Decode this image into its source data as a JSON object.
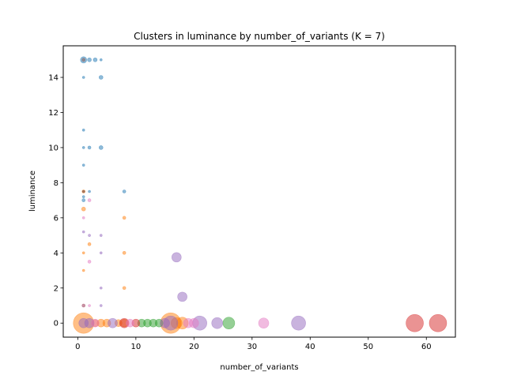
{
  "chart_data": {
    "type": "scatter",
    "title": "Clusters in luminance by number_of_variants (K = 7)",
    "xlabel": "number_of_variants",
    "ylabel": "luminance",
    "xlim": [
      -2.5,
      65
    ],
    "ylim": [
      -0.8,
      15.8
    ],
    "xticks": [
      0,
      10,
      20,
      30,
      40,
      50,
      60
    ],
    "yticks": [
      0,
      2,
      4,
      6,
      8,
      10,
      12,
      14
    ],
    "grid": false,
    "legend": "none",
    "alpha": 0.5,
    "series": [
      {
        "color": "#1f77b4",
        "points": [
          {
            "x": 1,
            "y": 15,
            "s": 4
          },
          {
            "x": 2,
            "y": 15,
            "s": 2.5
          },
          {
            "x": 3,
            "y": 15,
            "s": 2.5
          },
          {
            "x": 4,
            "y": 15,
            "s": 1.5
          },
          {
            "x": 1,
            "y": 14,
            "s": 1.5
          },
          {
            "x": 4,
            "y": 14,
            "s": 2.5
          },
          {
            "x": 1,
            "y": 11,
            "s": 1.5
          },
          {
            "x": 1,
            "y": 10,
            "s": 1.5
          },
          {
            "x": 2,
            "y": 10,
            "s": 2
          },
          {
            "x": 4,
            "y": 10,
            "s": 2.5
          },
          {
            "x": 1,
            "y": 9,
            "s": 1.5
          },
          {
            "x": 1,
            "y": 7.5,
            "s": 1.5
          },
          {
            "x": 2,
            "y": 7.5,
            "s": 1.5
          },
          {
            "x": 8,
            "y": 7.5,
            "s": 2
          },
          {
            "x": 1,
            "y": 7.2,
            "s": 1.5
          },
          {
            "x": 1,
            "y": 7,
            "s": 2
          }
        ]
      },
      {
        "color": "#ff7f0e",
        "points": [
          {
            "x": 1,
            "y": 7.5,
            "s": 2
          },
          {
            "x": 1,
            "y": 6.5,
            "s": 2.5
          },
          {
            "x": 8,
            "y": 6,
            "s": 2
          },
          {
            "x": 2,
            "y": 4.5,
            "s": 2
          },
          {
            "x": 1,
            "y": 4,
            "s": 1.5
          },
          {
            "x": 8,
            "y": 4,
            "s": 2
          },
          {
            "x": 1,
            "y": 3,
            "s": 1.5
          },
          {
            "x": 8,
            "y": 2,
            "s": 2
          },
          {
            "x": 1,
            "y": 1,
            "s": 2
          },
          {
            "x": 1,
            "y": 0,
            "s": 13
          },
          {
            "x": 3,
            "y": 0,
            "s": 4.5
          },
          {
            "x": 4,
            "y": 0,
            "s": 5
          },
          {
            "x": 5,
            "y": 0,
            "s": 5
          },
          {
            "x": 7,
            "y": 0,
            "s": 4.5
          },
          {
            "x": 8,
            "y": 0,
            "s": 5
          },
          {
            "x": 16,
            "y": 0,
            "s": 13
          },
          {
            "x": 17,
            "y": 0,
            "s": 7
          },
          {
            "x": 18,
            "y": 0,
            "s": 7.5
          }
        ]
      },
      {
        "color": "#2ca02c",
        "points": [
          {
            "x": 11,
            "y": 0,
            "s": 5
          },
          {
            "x": 12,
            "y": 0,
            "s": 5
          },
          {
            "x": 13,
            "y": 0,
            "s": 5
          },
          {
            "x": 14,
            "y": 0,
            "s": 5
          },
          {
            "x": 26,
            "y": 0,
            "s": 7.5
          }
        ]
      },
      {
        "color": "#d62728",
        "points": [
          {
            "x": 8,
            "y": 0,
            "s": 6
          },
          {
            "x": 10,
            "y": 0,
            "s": 5
          },
          {
            "x": 58,
            "y": 0,
            "s": 11
          },
          {
            "x": 62,
            "y": 0,
            "s": 11
          }
        ]
      },
      {
        "color": "#9467bd",
        "points": [
          {
            "x": 1,
            "y": 1,
            "s": 2
          },
          {
            "x": 1,
            "y": 5.2,
            "s": 1.5
          },
          {
            "x": 2,
            "y": 5,
            "s": 1.5
          },
          {
            "x": 4,
            "y": 5,
            "s": 1.5
          },
          {
            "x": 4,
            "y": 4,
            "s": 1.5
          },
          {
            "x": 4,
            "y": 2,
            "s": 1.5
          },
          {
            "x": 4,
            "y": 1,
            "s": 1.5
          },
          {
            "x": 17,
            "y": 3.75,
            "s": 6
          },
          {
            "x": 18,
            "y": 1.5,
            "s": 6
          },
          {
            "x": 1,
            "y": 0,
            "s": 6
          },
          {
            "x": 2,
            "y": 0,
            "s": 6
          },
          {
            "x": 6,
            "y": 0,
            "s": 6
          },
          {
            "x": 15,
            "y": 0,
            "s": 6
          },
          {
            "x": 16,
            "y": 0,
            "s": 9
          },
          {
            "x": 21,
            "y": 0,
            "s": 9
          },
          {
            "x": 24,
            "y": 0,
            "s": 7
          },
          {
            "x": 38,
            "y": 0,
            "s": 9
          }
        ]
      },
      {
        "color": "#8c564b",
        "points": [
          {
            "x": 1,
            "y": 15,
            "s": 2
          },
          {
            "x": 1,
            "y": 7.5,
            "s": 1.5
          }
        ]
      },
      {
        "color": "#e377c2",
        "points": [
          {
            "x": 1,
            "y": 6,
            "s": 1.5
          },
          {
            "x": 2,
            "y": 7,
            "s": 2
          },
          {
            "x": 2,
            "y": 3.5,
            "s": 2
          },
          {
            "x": 2,
            "y": 1,
            "s": 1.5
          },
          {
            "x": 3,
            "y": 0,
            "s": 5
          },
          {
            "x": 9,
            "y": 0,
            "s": 5
          },
          {
            "x": 19,
            "y": 0,
            "s": 6
          },
          {
            "x": 20,
            "y": 0,
            "s": 6
          },
          {
            "x": 32,
            "y": 0,
            "s": 6.5
          }
        ]
      }
    ]
  }
}
